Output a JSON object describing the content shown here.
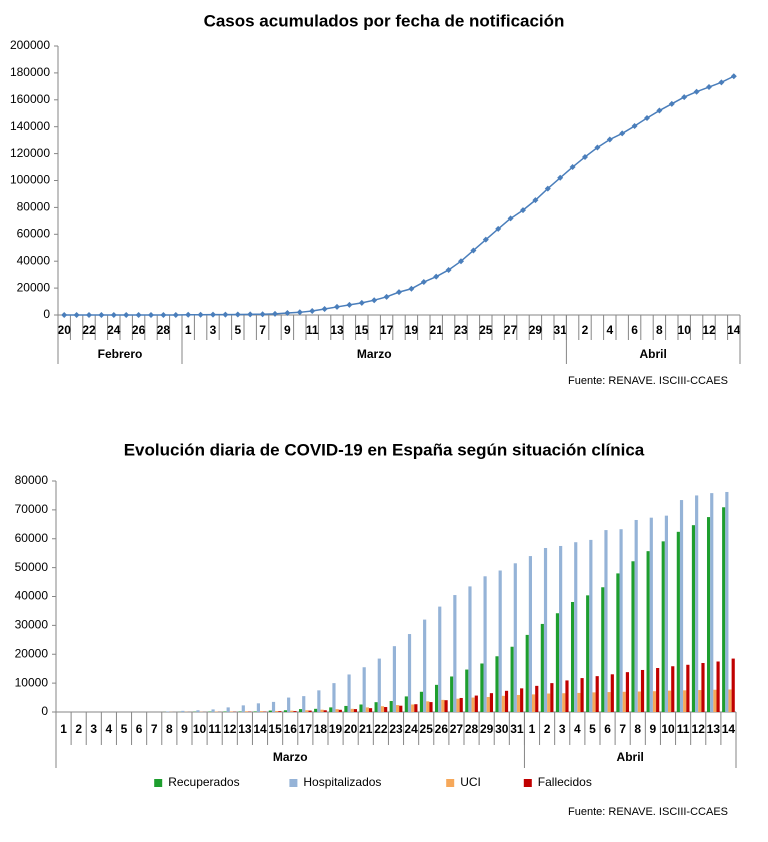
{
  "chart_data": [
    {
      "type": "line",
      "title": "Casos acumulados por fecha de notificación",
      "categories": [
        "20",
        null,
        "22",
        null,
        "24",
        null,
        "26",
        null,
        "28",
        null,
        "1",
        null,
        "3",
        null,
        "5",
        null,
        "7",
        null,
        "9",
        null,
        "11",
        null,
        "13",
        null,
        "15",
        null,
        "17",
        null,
        "19",
        null,
        "21",
        null,
        "23",
        null,
        "25",
        null,
        "27",
        null,
        "29",
        null,
        "31",
        null,
        "2",
        null,
        "4",
        null,
        "6",
        null,
        "8",
        null,
        "10",
        null,
        "12",
        null,
        "14"
      ],
      "groups": [
        {
          "label": "Febrero",
          "count": 10
        },
        {
          "label": "Marzo",
          "count": 31
        },
        {
          "label": "Abril",
          "count": 14
        }
      ],
      "values": [
        3,
        3,
        3,
        3,
        4,
        6,
        13,
        25,
        32,
        45,
        150,
        200,
        250,
        300,
        400,
        500,
        600,
        800,
        1500,
        2000,
        3000,
        4500,
        6000,
        7500,
        9000,
        11000,
        13500,
        17000,
        19500,
        24500,
        28500,
        33500,
        40000,
        48000,
        56000,
        64000,
        71800,
        78000,
        85400,
        94000,
        102000,
        110000,
        117500,
        124500,
        130500,
        135000,
        140500,
        146500,
        152000,
        157000,
        162000,
        166000,
        169500,
        173000,
        177500
      ],
      "color": "#4a7ebb",
      "ylim": [
        0,
        200000
      ],
      "yticks": [
        0,
        20000,
        40000,
        60000,
        80000,
        100000,
        120000,
        140000,
        160000,
        180000,
        200000
      ],
      "grid": false,
      "source": "Fuente: RENAVE. ISCIII-CCAES"
    },
    {
      "type": "bar",
      "title": "Evolución diaria de COVID-19 en España según situación clínica",
      "categories": [
        "1",
        "2",
        "3",
        "4",
        "5",
        "6",
        "7",
        "8",
        "9",
        "10",
        "11",
        "12",
        "13",
        "14",
        "15",
        "16",
        "17",
        "18",
        "19",
        "20",
        "21",
        "22",
        "23",
        "24",
        "25",
        "26",
        "27",
        "28",
        "29",
        "30",
        "31",
        "1",
        "2",
        "3",
        "4",
        "5",
        "6",
        "7",
        "8",
        "9",
        "10",
        "11",
        "12",
        "13",
        "14"
      ],
      "groups": [
        {
          "label": "Marzo",
          "count": 31
        },
        {
          "label": "Abril",
          "count": 14
        }
      ],
      "series": [
        {
          "name": "Recuperados",
          "color": "#1e9e2e",
          "values": [
            0,
            0,
            0,
            0,
            0,
            0,
            0,
            30,
            30,
            100,
            150,
            180,
            190,
            200,
            500,
            600,
            1000,
            1100,
            1600,
            2100,
            2600,
            3400,
            3800,
            5400,
            7000,
            9400,
            12300,
            14700,
            16800,
            19300,
            22600,
            26700,
            30500,
            34200,
            38100,
            40400,
            43200,
            48000,
            52200,
            55700,
            59100,
            62400,
            64700,
            67500,
            70900
          ]
        },
        {
          "name": "Hospitalizados",
          "color": "#95b3d7",
          "values": [
            0,
            0,
            0,
            0,
            0,
            0,
            0,
            200,
            400,
            600,
            900,
            1600,
            2300,
            3000,
            3500,
            5000,
            5500,
            7500,
            10000,
            13000,
            15500,
            18500,
            22800,
            27000,
            32000,
            36500,
            40500,
            43500,
            47000,
            49000,
            51500,
            54000,
            56800,
            57500,
            58800,
            59600,
            63000,
            63300,
            66500,
            67300,
            68000,
            73400,
            75000,
            75800,
            76200
          ]
        },
        {
          "name": "UCI",
          "color": "#f6a85a",
          "values": [
            0,
            0,
            0,
            0,
            0,
            0,
            0,
            50,
            80,
            100,
            150,
            200,
            250,
            300,
            350,
            450,
            600,
            800,
            1000,
            1100,
            1600,
            2000,
            2400,
            2600,
            3700,
            4200,
            4600,
            5000,
            5200,
            5600,
            5900,
            6100,
            6400,
            6500,
            6600,
            6800,
            6900,
            7000,
            7100,
            7200,
            7400,
            7500,
            7600,
            7700,
            7800
          ]
        },
        {
          "name": "Fallecidos",
          "color": "#c00000",
          "values": [
            0,
            0,
            0,
            0,
            0,
            0,
            0,
            10,
            17,
            28,
            35,
            84,
            121,
            136,
            288,
            309,
            491,
            598,
            767,
            1002,
            1326,
            1720,
            2182,
            2696,
            3434,
            4089,
            4858,
            5690,
            6528,
            7340,
            8189,
            9053,
            10003,
            10935,
            11744,
            12418,
            13055,
            13798,
            14555,
            15238,
            15843,
            16353,
            16972,
            17489,
            18500
          ]
        }
      ],
      "ylim": [
        0,
        80000
      ],
      "yticks": [
        0,
        10000,
        20000,
        30000,
        40000,
        50000,
        60000,
        70000,
        80000
      ],
      "grid": false,
      "legend": "bottom",
      "source": "Fuente: RENAVE. ISCIII-CCAES"
    }
  ]
}
